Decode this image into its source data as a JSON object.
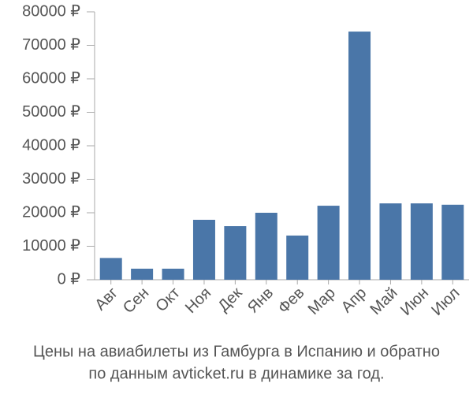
{
  "chart_data": {
    "type": "bar",
    "title": [
      "Цены на авиабилеты из Гамбурга в Испанию и обратно",
      "по данным avticket.ru в динамике за год."
    ],
    "categories": [
      "Авг",
      "Сен",
      "Окт",
      "Ноя",
      "Дек",
      "Янв",
      "Фев",
      "Мар",
      "Апр",
      "Май",
      "Июн",
      "Июл"
    ],
    "values": [
      6500,
      3300,
      3300,
      17900,
      16000,
      20000,
      13200,
      22100,
      74100,
      22800,
      22800,
      22400
    ],
    "color": "#4a76a8",
    "ylim": [
      0,
      80000
    ],
    "yticks": [
      {
        "value": 0,
        "label": "0 ₽"
      },
      {
        "value": 10000,
        "label": "10000 ₽"
      },
      {
        "value": 20000,
        "label": "20000 ₽"
      },
      {
        "value": 30000,
        "label": "30000 ₽"
      },
      {
        "value": 40000,
        "label": "40000 ₽"
      },
      {
        "value": 50000,
        "label": "50000 ₽"
      },
      {
        "value": 60000,
        "label": "60000 ₽"
      },
      {
        "value": 70000,
        "label": "70000 ₽"
      },
      {
        "value": 80000,
        "label": "80000 ₽"
      }
    ],
    "grid": false
  }
}
